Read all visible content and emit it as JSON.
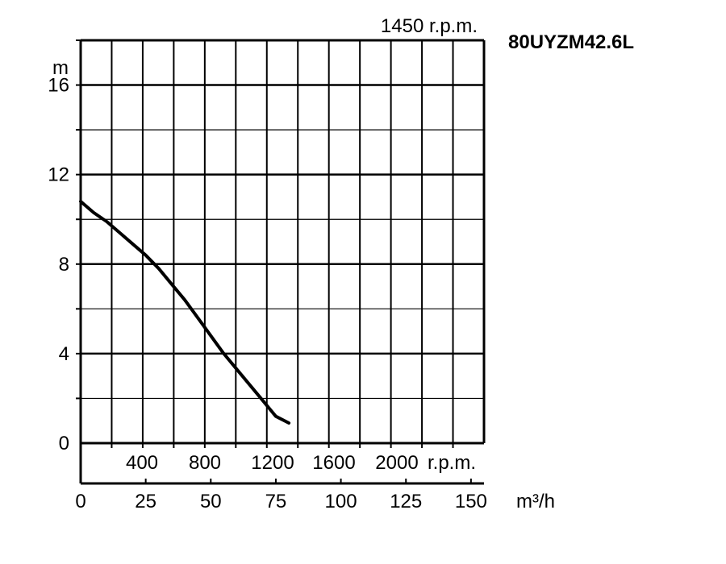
{
  "chart_data": {
    "type": "line",
    "title": "80UYZM42.6L",
    "speed_label": "1450 r.p.m.",
    "ylabel": "m",
    "xlabel": "m³/h",
    "ylim": [
      0,
      18
    ],
    "xlim": [
      0,
      155
    ],
    "y_ticks": [
      "0",
      "4",
      "8",
      "12",
      "16"
    ],
    "x_ticks": [
      "0",
      "25",
      "50",
      "75",
      "100",
      "125",
      "150"
    ],
    "secondary_x_ticks": [
      "400",
      "800",
      "1200",
      "1600",
      "2000"
    ],
    "secondary_x_unit": "r.p.m.",
    "grid": true,
    "series": [
      {
        "x": [
          0,
          5,
          10,
          15,
          20,
          25,
          30,
          35,
          40,
          45,
          50,
          55,
          60,
          65,
          70,
          75,
          80
        ],
        "y": [
          10.8,
          10.3,
          9.9,
          9.4,
          8.9,
          8.4,
          7.8,
          7.1,
          6.4,
          5.6,
          4.8,
          4.0,
          3.3,
          2.6,
          1.9,
          1.2,
          0.9
        ]
      }
    ]
  }
}
